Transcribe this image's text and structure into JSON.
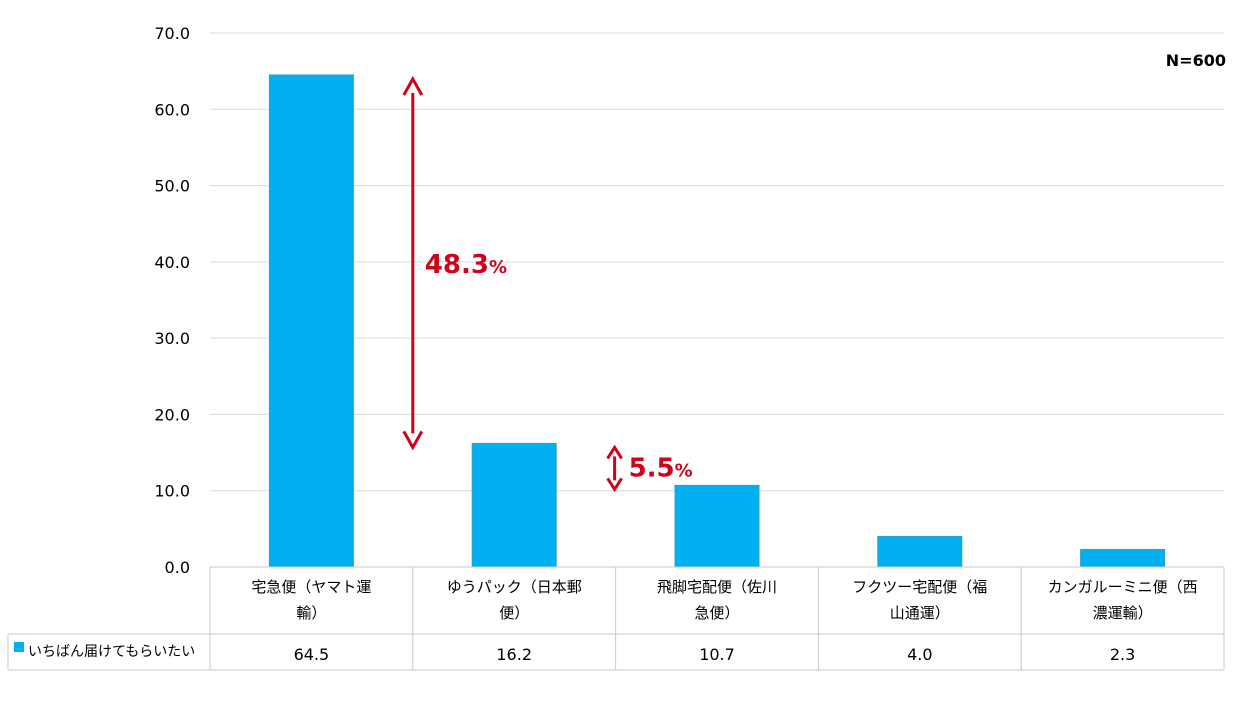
{
  "chart_data": {
    "type": "bar",
    "categories": [
      [
        "宅急便（ヤマト運",
        "輸）"
      ],
      [
        "ゆうパック（日本郵",
        "便）"
      ],
      [
        "飛脚宅配便（佐川",
        "急便）"
      ],
      [
        "フクツー宅配便（福",
        "山通運）"
      ],
      [
        "カンガルーミニ便（西",
        "濃運輸）"
      ]
    ],
    "series": [
      {
        "name": "いちばん届けてもらいたい",
        "values": [
          64.5,
          16.2,
          10.7,
          4.0,
          2.3
        ],
        "labels": [
          "64.5",
          "16.2",
          "10.7",
          "4.0",
          "2.3"
        ],
        "color": "#00b0f0"
      }
    ],
    "yticks": [
      "0.0",
      "10.0",
      "20.0",
      "30.0",
      "40.0",
      "50.0",
      "60.0",
      "70.0"
    ],
    "ylim": [
      0,
      70
    ],
    "grid": true,
    "legend_position": "data-table-left",
    "sample_note": "N=600",
    "annotations": [
      {
        "number": "48.3",
        "unit": "%",
        "from_value": 64.5,
        "to_value": 16.2,
        "between": [
          0,
          1
        ],
        "color": "#d0021b"
      },
      {
        "number": "5.5",
        "unit": "%",
        "from_value": 16.2,
        "to_value": 10.7,
        "between": [
          1,
          2
        ],
        "color": "#d0021b"
      }
    ]
  }
}
